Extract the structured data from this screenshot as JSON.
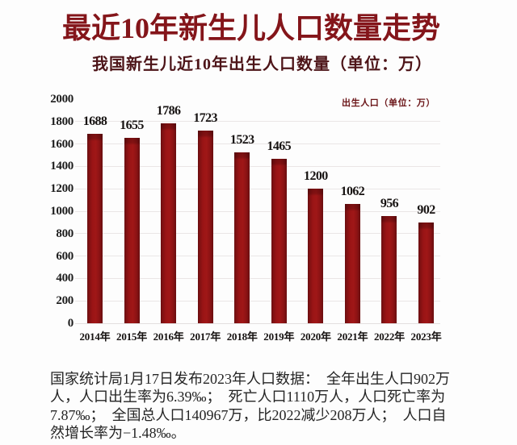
{
  "title": "最近10年新生儿人口数量走势",
  "subtitle": "我国新生儿近10年出生人口数量（单位：万）",
  "legend": "出生人口（单位：万）",
  "chart_data": {
    "type": "bar",
    "title": "我国新生儿近10年出生人口数量（单位：万）",
    "series_name": "出生人口（单位：万）",
    "categories": [
      "2014年",
      "2015年",
      "2016年",
      "2017年",
      "2018年",
      "2019年",
      "2020年",
      "2021年",
      "2022年",
      "2023年"
    ],
    "values": [
      1688,
      1655,
      1786,
      1723,
      1523,
      1465,
      1200,
      1062,
      956,
      902
    ],
    "xlabel": "",
    "ylabel": "",
    "ylim": [
      0,
      2000
    ],
    "ytick_step": 200,
    "grid": true,
    "legend_position": "top-right",
    "bar_color": "#9e1617"
  },
  "footer": {
    "lines": [
      "国家统计局1月17日发布2023年人口数据：　全年出生人口902万",
      "人，人口出生率为6.39‰；　死亡人口1110万人，人口死亡率为",
      "7.87‰；　全国总人口140967万，比2022减少208万人；　人口自",
      "然增长率为−1.48‰。"
    ]
  },
  "colors": {
    "title": "#84151a",
    "subtitle": "#4d1418",
    "legend": "#6b1518",
    "bar": "#9e1617",
    "grid": "#eae6e6",
    "text": "#242424",
    "background": "#fdfdfd"
  }
}
